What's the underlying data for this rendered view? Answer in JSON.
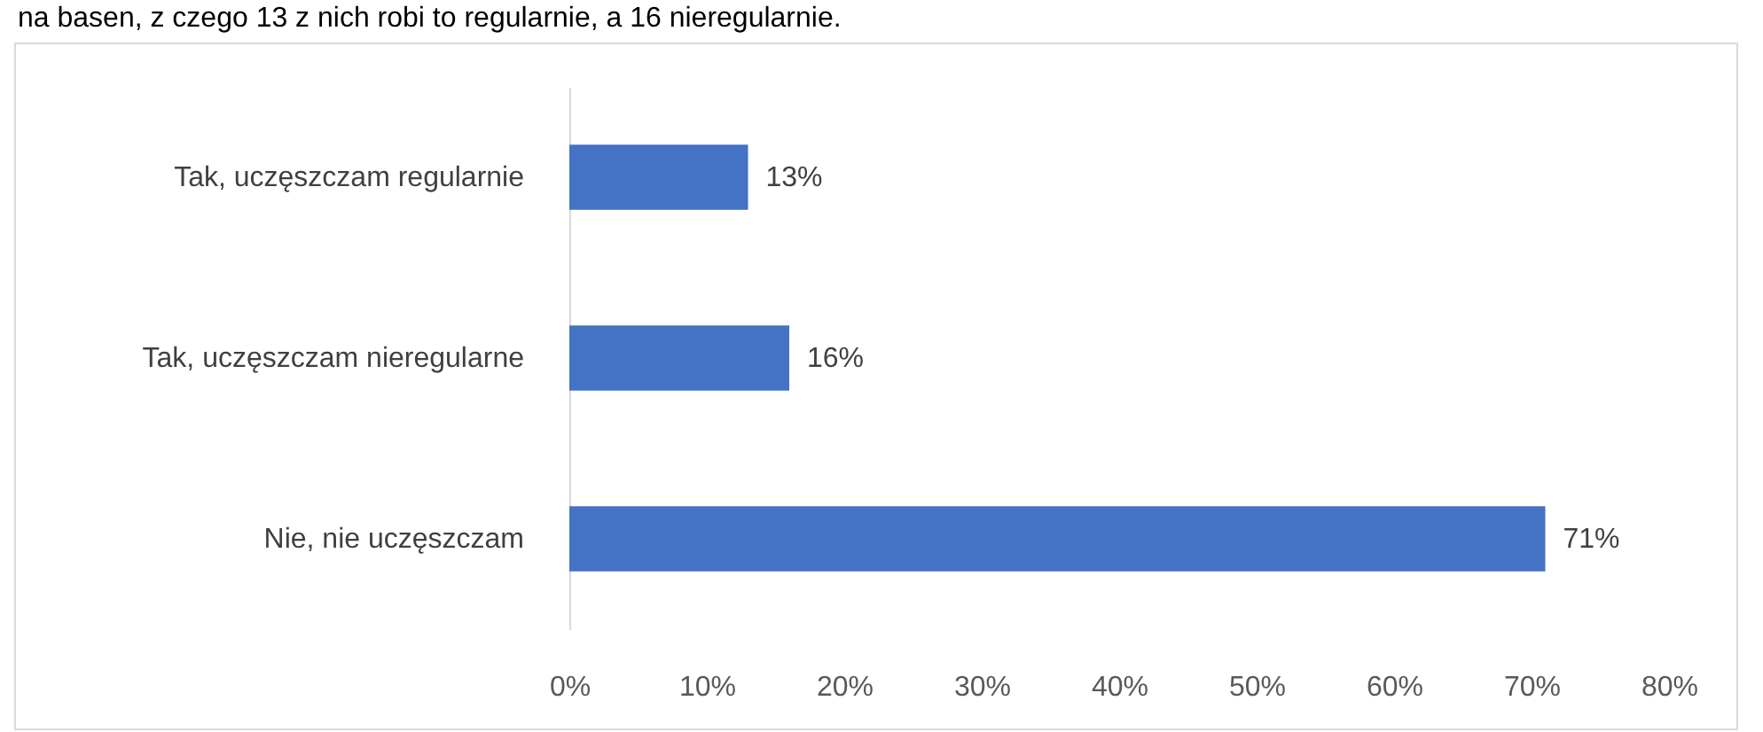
{
  "chart_data": {
    "type": "bar",
    "orientation": "horizontal",
    "annotations": [
      "na basen, z czego 13 z nich robi to regularnie, a 16 nieregularnie."
    ],
    "categories": [
      "Tak, uczęszczam regularnie",
      "Tak, uczęszczam nieregularne",
      "Nie, nie uczęszczam"
    ],
    "values": [
      13,
      16,
      71
    ],
    "value_labels": [
      "13%",
      "16%",
      "71%"
    ],
    "color": "#4472c4",
    "xlim": [
      0,
      80
    ],
    "xticks": [
      {
        "value": 0,
        "label": "0%"
      },
      {
        "value": 10,
        "label": "10%"
      },
      {
        "value": 20,
        "label": "20%"
      },
      {
        "value": 30,
        "label": "30%"
      },
      {
        "value": 40,
        "label": "40%"
      },
      {
        "value": 50,
        "label": "50%"
      },
      {
        "value": 60,
        "label": "60%"
      },
      {
        "value": 70,
        "label": "70%"
      },
      {
        "value": 80,
        "label": "80%"
      }
    ],
    "grid": false
  }
}
